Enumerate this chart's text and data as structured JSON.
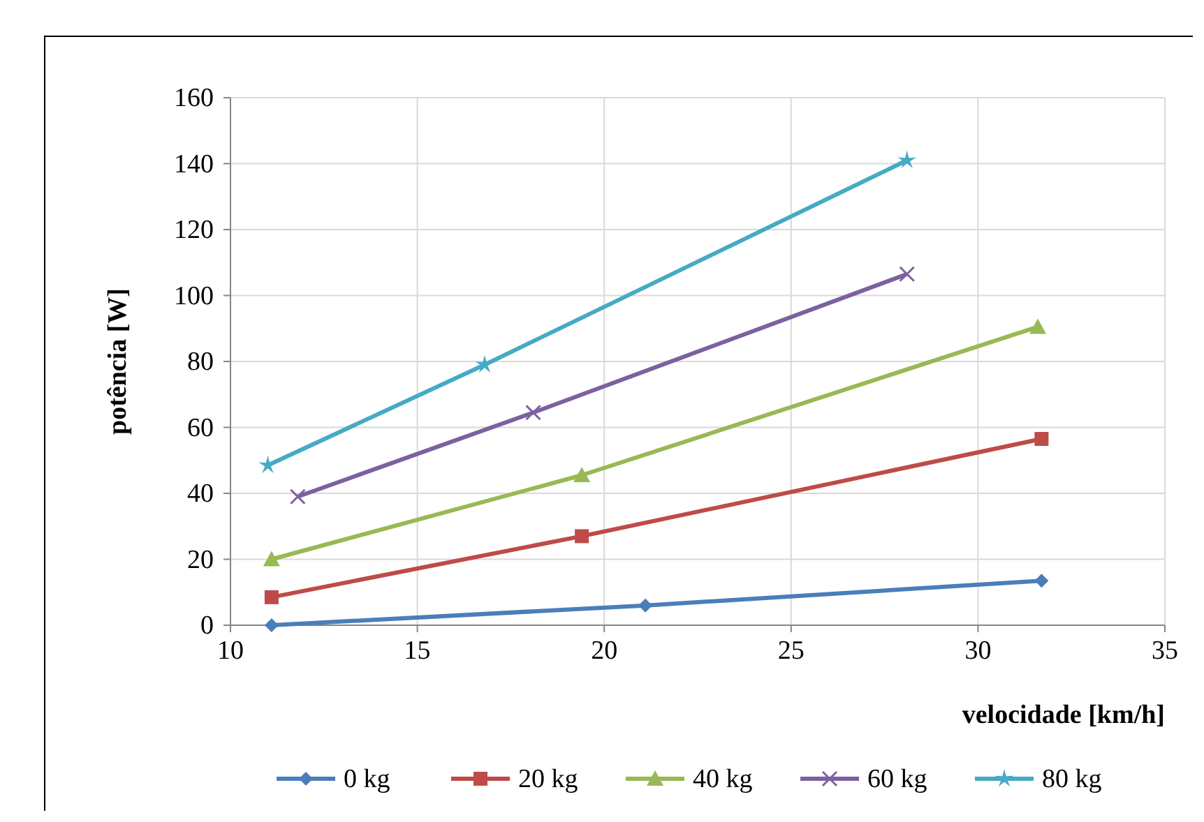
{
  "chart_data": {
    "type": "line",
    "xlabel": "velocidade [km/h]",
    "ylabel": "potência [W]",
    "xlim": [
      10,
      35
    ],
    "xticks": [
      10,
      15,
      20,
      25,
      30,
      35
    ],
    "ylim": [
      0,
      160
    ],
    "yticks": [
      0,
      20,
      40,
      60,
      80,
      100,
      120,
      140,
      160
    ],
    "grid": true,
    "legend": "bottom",
    "series": [
      {
        "name": "0 kg",
        "color": "#4a7ebb",
        "marker": "diamond",
        "x": [
          11.1,
          21.1,
          31.7
        ],
        "values": [
          0,
          6,
          13.5
        ]
      },
      {
        "name": "20 kg",
        "color": "#be4b48",
        "marker": "square",
        "x": [
          11.1,
          19.4,
          31.7
        ],
        "values": [
          8.5,
          27,
          56.5
        ]
      },
      {
        "name": "40 kg",
        "color": "#98b954",
        "marker": "triangle",
        "x": [
          11.1,
          19.4,
          31.6
        ],
        "values": [
          20,
          45.5,
          90.5
        ]
      },
      {
        "name": "60 kg",
        "color": "#7d60a0",
        "marker": "cross",
        "x": [
          11.8,
          18.1,
          28.1
        ],
        "values": [
          39,
          64.5,
          106.5
        ]
      },
      {
        "name": "80 kg",
        "color": "#46aac5",
        "marker": "star",
        "x": [
          11,
          16.8,
          28.1
        ],
        "values": [
          48.5,
          79,
          141
        ]
      }
    ]
  }
}
